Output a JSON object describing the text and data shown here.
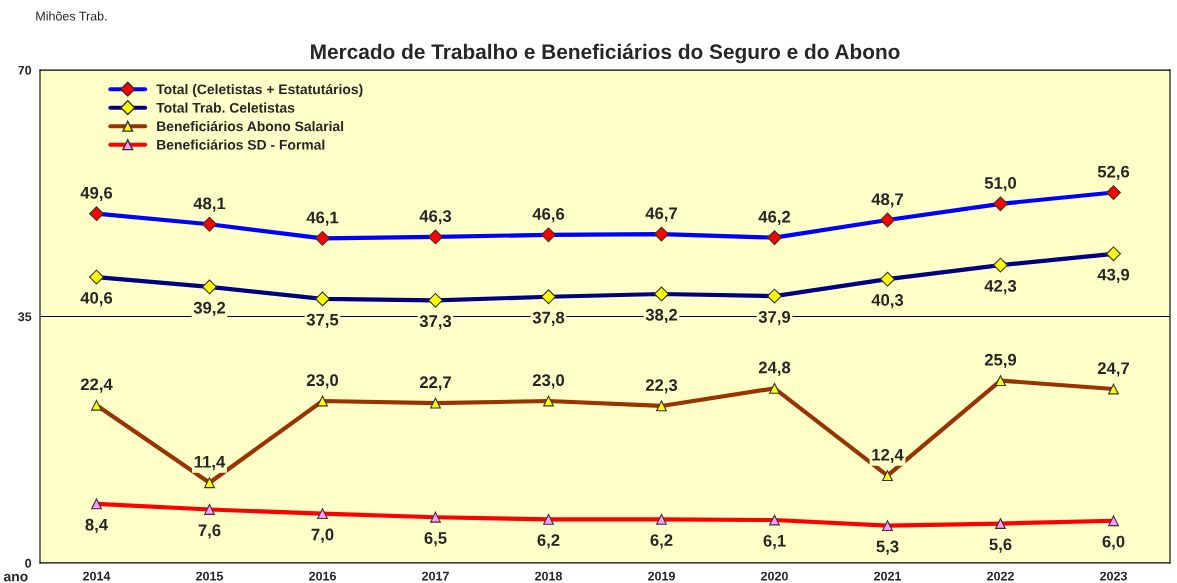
{
  "chart_data": {
    "type": "line",
    "title": "Mercado de Trabalho e Beneficiários do Seguro e do Abono",
    "ylabel": "Mihões Trab.",
    "xlabel": "ano",
    "categories": [
      "2014",
      "2015",
      "2016",
      "2017",
      "2018",
      "2019",
      "2020",
      "2021",
      "2022",
      "2023"
    ],
    "series": [
      {
        "name": "Total (Celetistas + Estatutários)",
        "color": "#0000ff",
        "marker": "diamond",
        "values": [
          49.6,
          48.1,
          46.1,
          46.3,
          46.6,
          46.7,
          46.2,
          48.7,
          51.0,
          52.6
        ],
        "value_labels": [
          "49,6",
          "48,1",
          "46,1",
          "46,3",
          "46,6",
          "46,7",
          "46,2",
          "48,7",
          "51,0",
          "52,6"
        ]
      },
      {
        "name": "Total Trab. Celetistas",
        "color": "#000080",
        "marker": "diamond",
        "values": [
          40.6,
          39.2,
          37.5,
          37.3,
          37.8,
          38.2,
          37.9,
          40.3,
          42.3,
          43.9
        ],
        "value_labels": [
          "40,6",
          "39,2",
          "37,5",
          "37,3",
          "37,8",
          "38,2",
          "37,9",
          "40,3",
          "42,3",
          "43,9"
        ]
      },
      {
        "name": "Beneficiários Abono Salarial",
        "color": "#993300",
        "marker": "triangle",
        "values": [
          22.4,
          11.4,
          23.0,
          22.7,
          23.0,
          22.3,
          24.8,
          12.4,
          25.9,
          24.7
        ],
        "value_labels": [
          "22,4",
          "11,4",
          "23,0",
          "22,7",
          "23,0",
          "22,3",
          "24,8",
          "12,4",
          "25,9",
          "24,7"
        ]
      },
      {
        "name": "Beneficiários SD - Formal",
        "color": "#ff0000",
        "marker": "triangle",
        "values": [
          8.4,
          7.6,
          7.0,
          6.5,
          6.2,
          6.2,
          6.1,
          5.3,
          5.6,
          6.0
        ],
        "value_labels": [
          "8,4",
          "7,6",
          "7,0",
          "6,5",
          "6,2",
          "6,2",
          "6,1",
          "5,3",
          "5,6",
          "6,0"
        ]
      }
    ],
    "ylim": [
      0,
      70
    ],
    "yticks": [
      0,
      35,
      70
    ],
    "grid": "y",
    "legend": "top left"
  }
}
